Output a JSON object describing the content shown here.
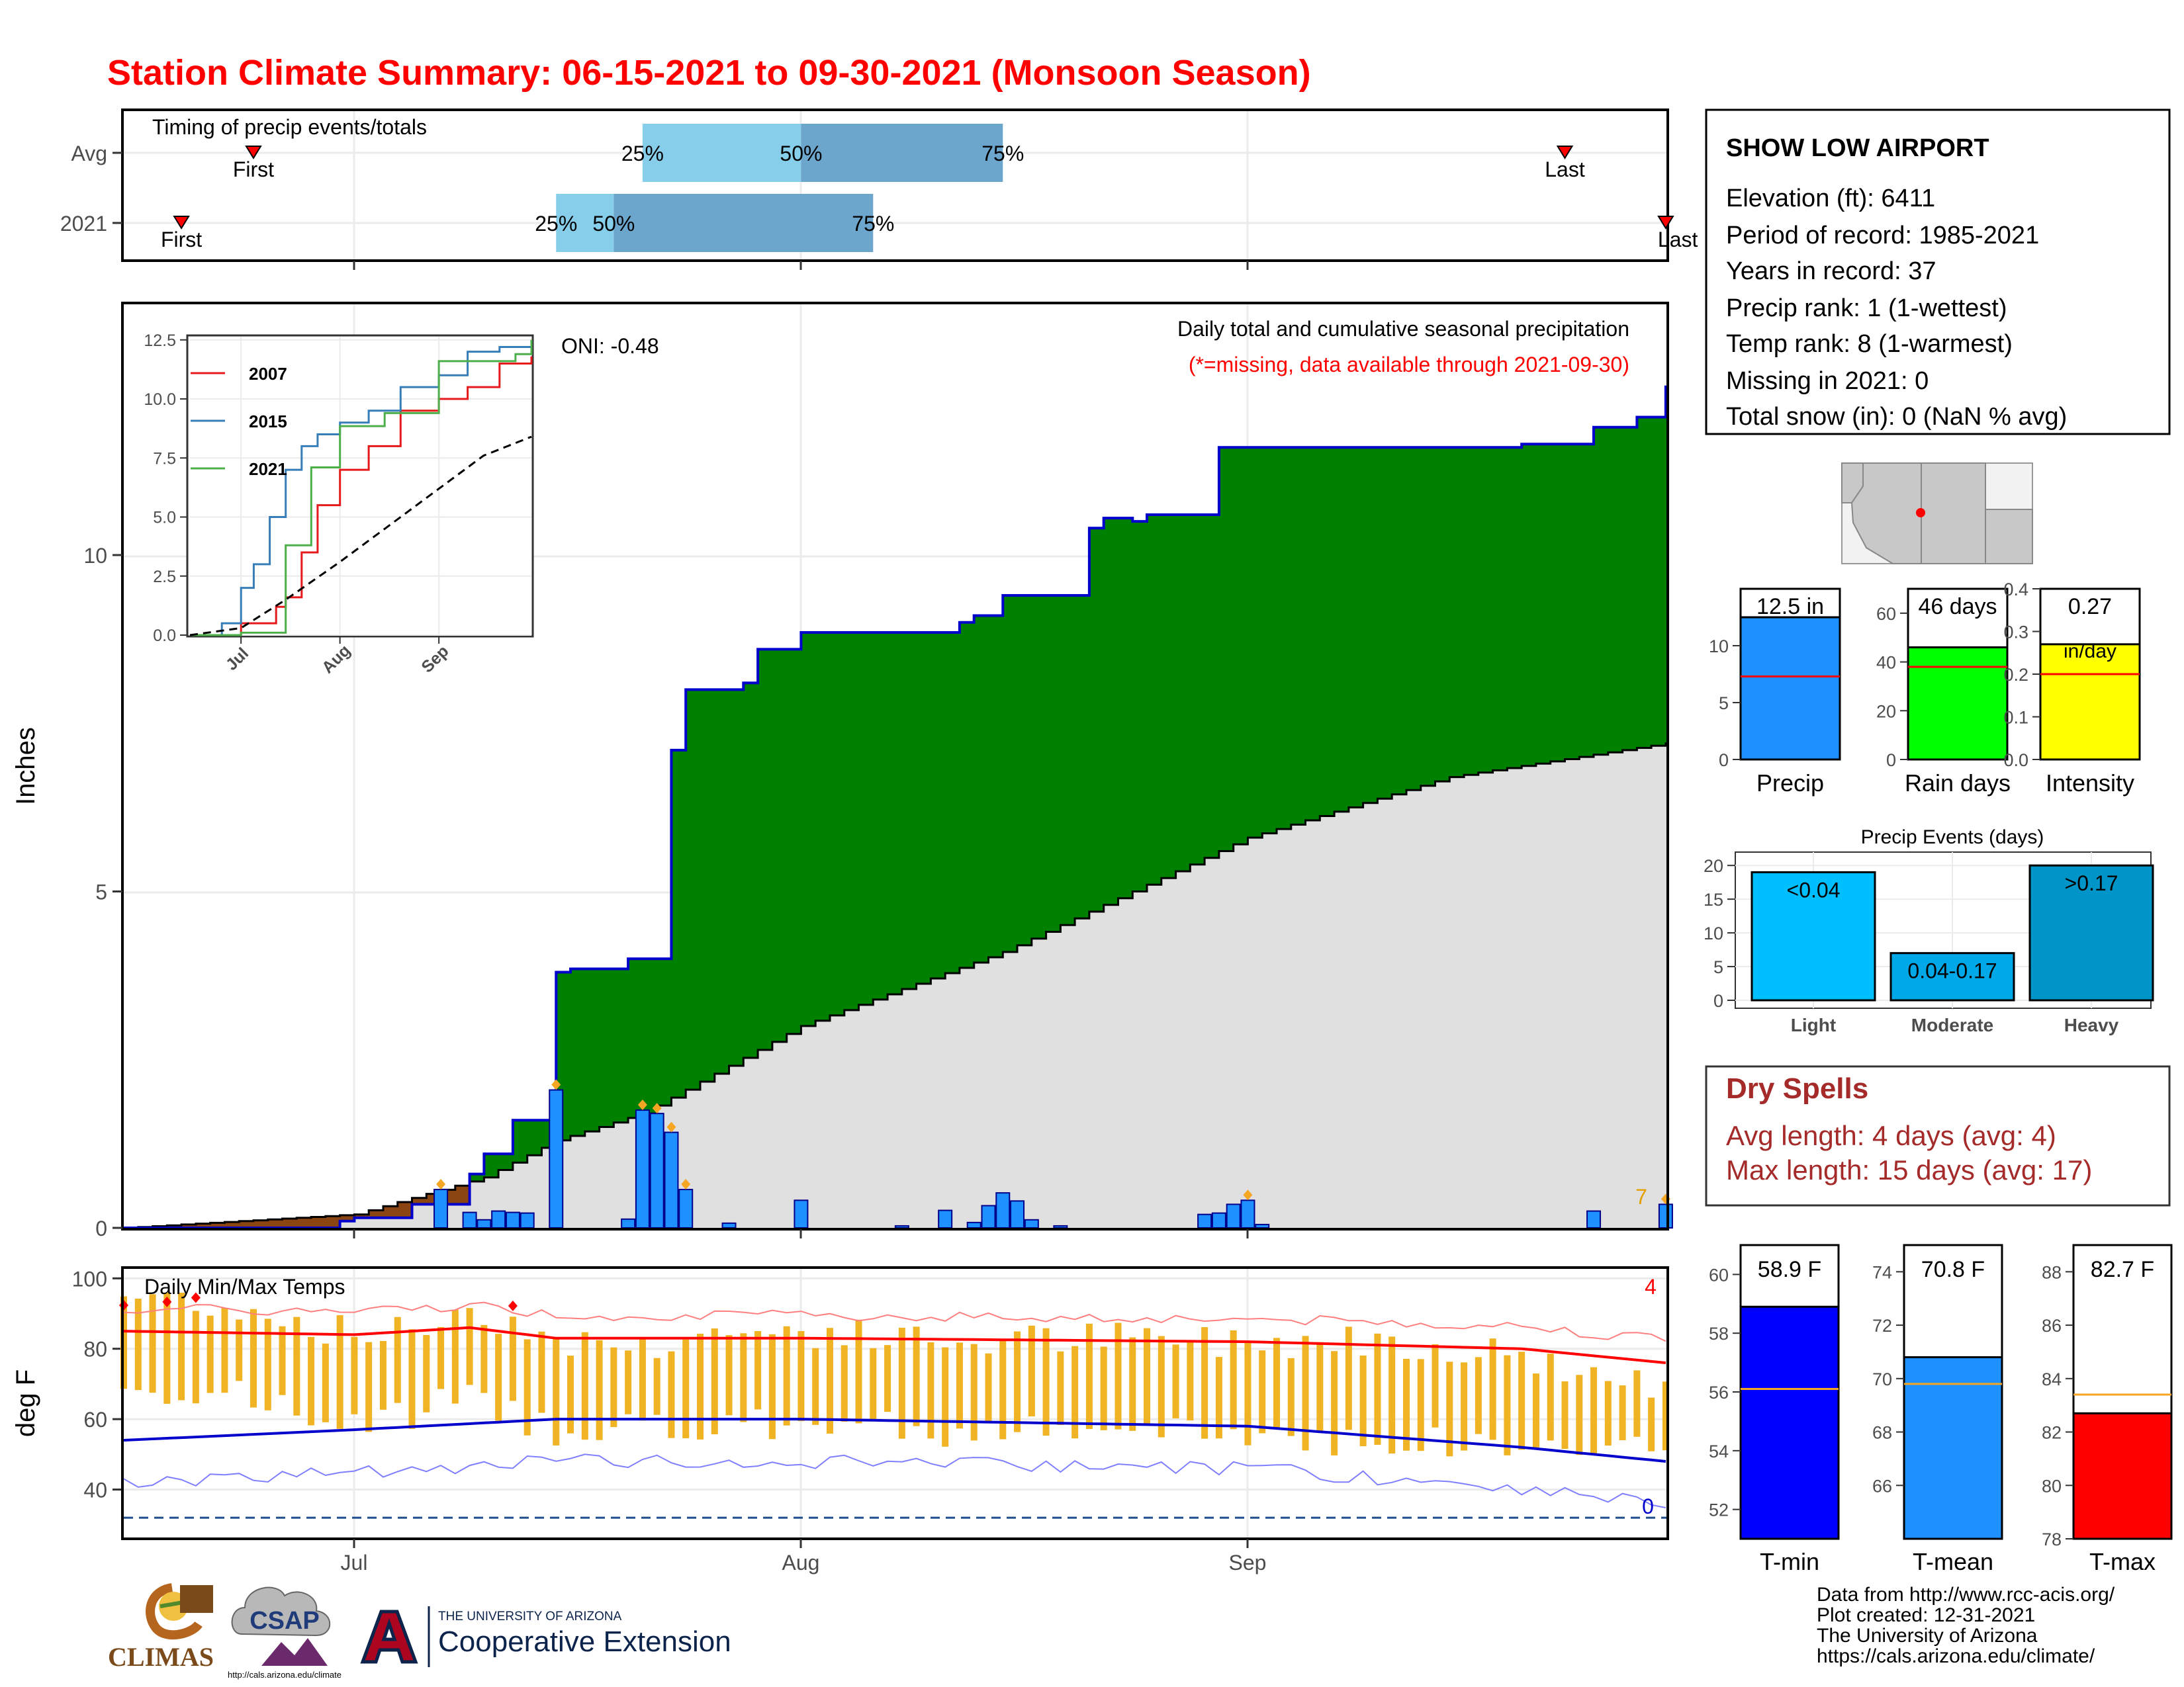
{
  "page": {
    "title": "Station Climate Summary: 06-15-2021 to 09-30-2021 (Monsoon Season)"
  },
  "timing": {
    "label": "Timing of precip events/totals",
    "rows": [
      "Avg",
      "2021"
    ],
    "avg": {
      "first": "06-24",
      "last": "09-23",
      "p25": "07-21",
      "p50": "08-01",
      "p75": "08-15"
    },
    "y2021": {
      "first": "06-19",
      "last": "09-30",
      "p25": "07-15",
      "p50": "07-19",
      "p75": "08-06"
    },
    "first_label": "First",
    "last_label": "Last",
    "p25_label": "25%",
    "p50_label": "50%",
    "p75_label": "75%"
  },
  "main_chart": {
    "subtitle": "Daily total and cumulative seasonal precipitation",
    "missing_note": "(*=missing, data available through 2021-09-30)",
    "oni": "ONI: -0.48",
    "ylabel": "Inches",
    "yticks": [
      "0",
      "5",
      "10"
    ],
    "month_labels": [
      "Jul",
      "Aug",
      "Sep"
    ],
    "corner_count": "7"
  },
  "inset": {
    "yticks": [
      "0.0",
      "2.5",
      "5.0",
      "7.5",
      "10.0",
      "12.5"
    ],
    "xticks": [
      "Jul",
      "Aug",
      "Sep"
    ],
    "legend": [
      "2007",
      "2015",
      "2021"
    ]
  },
  "temp_chart": {
    "label": "Daily Min/Max Temps",
    "ylabel": "deg F",
    "yticks": [
      "40",
      "60",
      "80",
      "100"
    ],
    "count_high": "4",
    "count_low": "0"
  },
  "station": {
    "name": "SHOW LOW AIRPORT",
    "elevation": "Elevation (ft): 6411",
    "period": "Period of record: 1985-2021",
    "years": "Years in record: 37",
    "precip_rank": "Precip rank: 1 (1-wettest)",
    "temp_rank": "Temp rank: 8 (1-warmest)",
    "missing": "Missing in 2021: 0",
    "snow": "Total snow (in): 0 (NaN % avg)"
  },
  "summary_bars": [
    {
      "name": "Precip",
      "value": 12.5,
      "avg": 7.3,
      "max": 15,
      "ticks": [
        "0",
        "5",
        "10"
      ],
      "label": "12.5 in",
      "color": "#1e90ff"
    },
    {
      "name": "Rain days",
      "value": 46,
      "avg": 38,
      "max": 70,
      "ticks": [
        "0",
        "20",
        "40",
        "60"
      ],
      "label": "46 days",
      "color": "#00ff00"
    },
    {
      "name": "Intensity",
      "value": 0.27,
      "avg": 0.2,
      "max": 0.4,
      "ticks": [
        "0.0",
        "0.1",
        "0.2",
        "0.3",
        "0.4"
      ],
      "label": "0.27",
      "label2": "in/day",
      "color": "#ffff00"
    }
  ],
  "precip_events": {
    "title": "Precip Events (days)",
    "yticks": [
      "0",
      "5",
      "10",
      "15",
      "20"
    ],
    "bars": [
      {
        "name": "Light",
        "value": 19,
        "label": "<0.04",
        "color": "#00bfff"
      },
      {
        "name": "Moderate",
        "value": 7,
        "label": "0.04-0.17",
        "color": "#00a8e8"
      },
      {
        "name": "Heavy",
        "value": 20,
        "label": ">0.17",
        "color": "#0095c8"
      }
    ]
  },
  "dry_spells": {
    "title": "Dry Spells",
    "avg_length": "Avg length: 4 days (avg: 4)",
    "max_length": "Max length: 15 days (avg: 17)"
  },
  "temp_bars": [
    {
      "name": "T-min",
      "value": 58.9,
      "avg": 56.1,
      "min": 51,
      "max": 61,
      "ticks": [
        "52",
        "54",
        "56",
        "58",
        "60"
      ],
      "label": "58.9 F",
      "color": "#0000ff"
    },
    {
      "name": "T-mean",
      "value": 70.8,
      "avg": 69.8,
      "min": 64,
      "max": 75,
      "ticks": [
        "66",
        "68",
        "70",
        "72",
        "74"
      ],
      "label": "70.8 F",
      "color": "#1e90ff"
    },
    {
      "name": "T-max",
      "value": 82.7,
      "avg": 83.4,
      "min": 78,
      "max": 89,
      "ticks": [
        "78",
        "80",
        "82",
        "84",
        "86",
        "88"
      ],
      "label": "82.7 F",
      "color": "#ff0000"
    }
  ],
  "footer": {
    "lines": [
      "Data from http://www.rcc-acis.org/",
      "Plot created: 12-31-2021",
      "The University of Arizona",
      "https://cals.arizona.edu/climate/"
    ],
    "climas": "CLIMAS",
    "csap": "CSAP",
    "csap_url": "http://cals.arizona.edu/climate",
    "ua_small": "THE UNIVERSITY OF ARIZONA",
    "ua_big": "Cooperative Extension"
  },
  "chart_data": [
    {
      "type": "area",
      "series": [
        {
          "name": "2021",
          "x": [
            "06-15",
            "06-30",
            "07-01",
            "07-05",
            "07-09",
            "07-10",
            "07-12",
            "07-15",
            "07-16",
            "07-20",
            "07-23",
            "07-24",
            "07-28",
            "07-29",
            "08-01",
            "08-08",
            "08-12",
            "08-13",
            "08-15",
            "08-21",
            "08-22",
            "08-24",
            "08-25",
            "08-30",
            "09-01",
            "09-20",
            "09-25",
            "09-28",
            "09-30"
          ],
          "values": [
            0,
            0.1,
            0.15,
            0.35,
            0.8,
            1.1,
            1.6,
            3.8,
            3.85,
            4.0,
            7.1,
            8.0,
            8.1,
            8.6,
            8.85,
            8.85,
            9.0,
            9.1,
            9.4,
            10.4,
            10.55,
            10.5,
            10.6,
            11.6,
            11.6,
            11.65,
            11.9,
            12.05,
            12.5
          ]
        },
        {
          "name": "avg",
          "x": [
            "06-15",
            "07-01",
            "07-10",
            "07-15",
            "07-21",
            "08-01",
            "08-15",
            "09-01",
            "09-15",
            "09-30"
          ],
          "values": [
            0,
            0.2,
            0.75,
            1.3,
            1.7,
            3.0,
            4.1,
            5.8,
            6.7,
            7.2
          ]
        }
      ],
      "ylabel": "Inches",
      "ylim": [
        0,
        13.5
      ]
    },
    {
      "type": "bar",
      "x": [
        "07-07",
        "07-09",
        "07-10",
        "07-11",
        "07-12",
        "07-13",
        "07-15",
        "07-20",
        "07-21",
        "07-22",
        "07-23",
        "07-24",
        "07-27",
        "08-01",
        "08-08",
        "08-11",
        "08-13",
        "08-14",
        "08-15",
        "08-16",
        "08-17",
        "08-19",
        "08-29",
        "08-30",
        "08-31",
        "09-01",
        "09-02",
        "09-25",
        "09-30"
      ],
      "values": [
        0.57,
        0.23,
        0.12,
        0.25,
        0.23,
        0.22,
        2.05,
        0.13,
        1.75,
        1.7,
        1.42,
        0.57,
        0.07,
        0.41,
        0.03,
        0.26,
        0.08,
        0.33,
        0.52,
        0.4,
        0.12,
        0.03,
        0.2,
        0.22,
        0.35,
        0.41,
        0.05,
        0.25,
        0.35
      ]
    },
    {
      "type": "line",
      "series": [
        {
          "name": "2007",
          "x": [
            "06-15",
            "07-01",
            "07-12",
            "07-15",
            "07-20",
            "07-25",
            "08-01",
            "08-10",
            "08-20",
            "09-01",
            "09-10",
            "09-20",
            "09-30"
          ],
          "values": [
            0,
            0.5,
            1.2,
            1.6,
            3.5,
            5.5,
            7.0,
            8.0,
            9.5,
            10.0,
            10.5,
            11.5,
            11.8
          ]
        },
        {
          "name": "2015",
          "x": [
            "06-15",
            "06-25",
            "07-01",
            "07-05",
            "07-10",
            "07-15",
            "07-20",
            "07-25",
            "08-01",
            "08-10",
            "08-20",
            "09-01",
            "09-10",
            "09-20",
            "09-30"
          ],
          "values": [
            0,
            0.5,
            2.0,
            3.0,
            5.0,
            7.0,
            8.0,
            8.5,
            9.0,
            9.5,
            10.5,
            11.0,
            12.0,
            12.2,
            12.3
          ]
        },
        {
          "name": "2021",
          "x": [
            "06-15",
            "07-01",
            "07-15",
            "07-23",
            "08-01",
            "08-15",
            "09-01",
            "09-25",
            "09-30"
          ],
          "values": [
            0,
            0.1,
            3.8,
            7.1,
            8.85,
            9.4,
            11.6,
            11.9,
            12.5
          ]
        },
        {
          "name": "average",
          "x": [
            "06-15",
            "07-01",
            "07-15",
            "08-01",
            "08-15",
            "09-01",
            "09-15",
            "09-30"
          ],
          "values": [
            0,
            0.3,
            1.5,
            3.1,
            4.5,
            6.2,
            7.6,
            8.4
          ]
        }
      ],
      "xticks": [
        "Jul",
        "Aug",
        "Sep"
      ],
      "ylim": [
        0,
        12.5
      ]
    },
    {
      "type": "bar",
      "series": [
        {
          "name": "T-max",
          "x": [
            "06-15",
            "06-20",
            "06-25",
            "07-01",
            "07-05",
            "07-09",
            "07-15",
            "07-20",
            "07-25",
            "08-01",
            "08-10",
            "08-20",
            "09-01",
            "09-10",
            "09-20",
            "09-30"
          ],
          "values": [
            95,
            94,
            90,
            84,
            85,
            92,
            83,
            80,
            84,
            85,
            82,
            83,
            82,
            83,
            78,
            67
          ]
        },
        {
          "name": "T-min",
          "x": [
            "06-15",
            "06-20",
            "06-25",
            "07-01",
            "07-05",
            "07-09",
            "07-15",
            "07-20",
            "07-25",
            "08-01",
            "08-10",
            "08-20",
            "09-01",
            "09-10",
            "09-20",
            "09-30"
          ],
          "values": [
            68,
            69,
            64,
            58,
            62,
            66,
            57,
            59,
            55,
            60,
            57,
            56,
            56,
            54,
            52,
            52
          ]
        },
        {
          "name": "avg max",
          "x": [
            "06-15",
            "07-01",
            "07-09",
            "07-15",
            "08-01",
            "09-01",
            "09-20",
            "09-30"
          ],
          "values": [
            85,
            84,
            86,
            83,
            83,
            82,
            80,
            76
          ]
        },
        {
          "name": "avg min",
          "x": [
            "06-15",
            "07-01",
            "07-15",
            "08-01",
            "09-01",
            "09-20",
            "09-30"
          ],
          "values": [
            54,
            57,
            60,
            60,
            58,
            52,
            48
          ]
        }
      ],
      "ylabel": "deg F",
      "ylim": [
        26,
        103
      ]
    }
  ]
}
